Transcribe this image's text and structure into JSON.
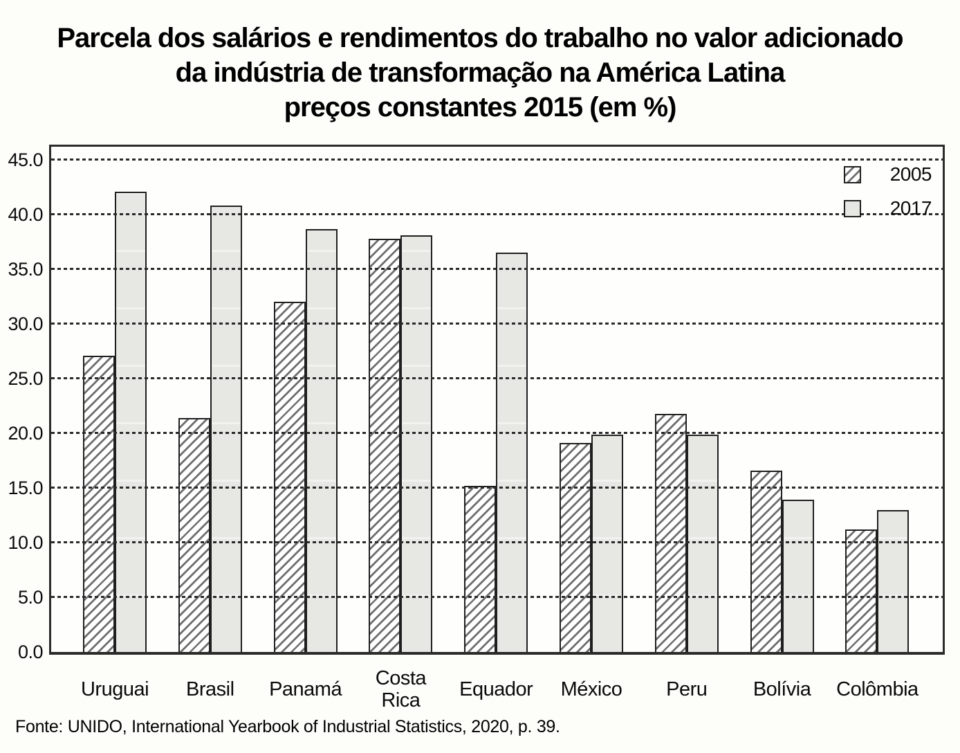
{
  "title": {
    "lines": [
      "Parcela dos salários e rendimentos do trabalho no valor adicionado",
      "da indústria de transformação na América Latina",
      "preços constantes 2015 (em %)"
    ]
  },
  "source": "Fonte: UNIDO, International Yearbook of Industrial Statistics, 2020, p. 39.",
  "chart_data": {
    "type": "bar",
    "categories": [
      "Uruguai",
      "Brasil",
      "Panamá",
      "Costa\nRica",
      "Equador",
      "México",
      "Peru",
      "Bolívia",
      "Colômbia"
    ],
    "series": [
      {
        "name": "2005",
        "style": "hatched",
        "values": [
          27.1,
          21.4,
          32.0,
          37.8,
          15.2,
          19.1,
          21.8,
          16.6,
          11.2
        ]
      },
      {
        "name": "2017",
        "style": "solid-gray",
        "values": [
          42.1,
          40.8,
          38.7,
          38.1,
          36.5,
          19.9,
          19.9,
          13.9,
          13.0
        ]
      }
    ],
    "title": "Parcela dos salários e rendimentos do trabalho no valor adicionado da indústria de transformação na América Latina preços constantes 2015 (em %)",
    "xlabel": "",
    "ylabel": "",
    "ylim": [
      0,
      45
    ],
    "ytick_step": 5,
    "yticks": [
      "0.0",
      "5.0",
      "10.0",
      "15.0",
      "20.0",
      "25.0",
      "30.0",
      "35.0",
      "40.0",
      "45.0"
    ],
    "grid": "horizontal-dotted",
    "legend_position": "top-right-inside"
  },
  "colors": {
    "bar_2005_fill": "#ffffff",
    "bar_2005_hatch": "#6e6e6e",
    "bar_2017_fill": "#e7e8e3",
    "bar_border": "#1f1f1f",
    "gridline": "#2a2a2a",
    "plot_border": "#2b2b2b",
    "text": "#000000",
    "background": "#fdfdfa"
  }
}
